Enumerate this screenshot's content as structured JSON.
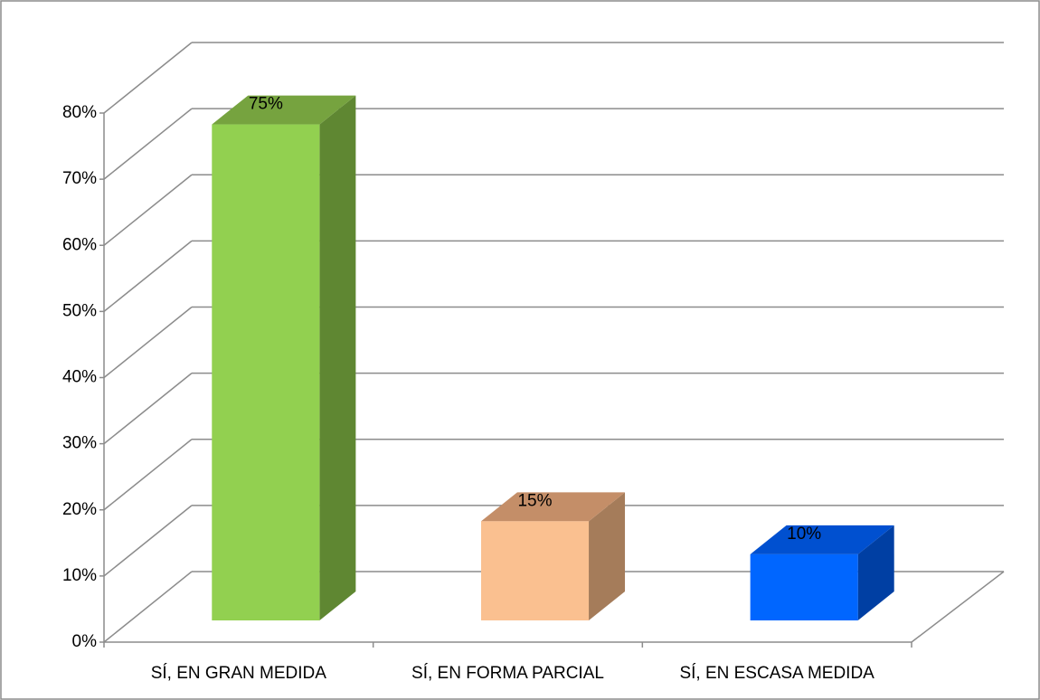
{
  "chart_data": {
    "type": "bar3d",
    "categories": [
      "SÍ, EN GRAN MEDIDA",
      "SÍ, EN FORMA PARCIAL",
      "SÍ, EN ESCASA MEDIDA"
    ],
    "values": [
      75,
      15,
      10
    ],
    "value_labels": [
      "75%",
      "15%",
      "10%"
    ],
    "colors": [
      {
        "front": "#92d050",
        "side": "#5f8732",
        "top": "#76a33f"
      },
      {
        "front": "#fac090",
        "side": "#a57c5a",
        "top": "#c48e68"
      },
      {
        "front": "#0066ff",
        "side": "#003fa3",
        "top": "#0050d0"
      }
    ],
    "ylim": [
      0,
      80
    ],
    "yticks": [
      {
        "value": 0,
        "label": "0%"
      },
      {
        "value": 10,
        "label": "10%"
      },
      {
        "value": 20,
        "label": "20%"
      },
      {
        "value": 30,
        "label": "30%"
      },
      {
        "value": 40,
        "label": "40%"
      },
      {
        "value": 50,
        "label": "50%"
      },
      {
        "value": 60,
        "label": "60%"
      },
      {
        "value": 70,
        "label": "70%"
      },
      {
        "value": 80,
        "label": "80%"
      }
    ],
    "grid": true
  }
}
